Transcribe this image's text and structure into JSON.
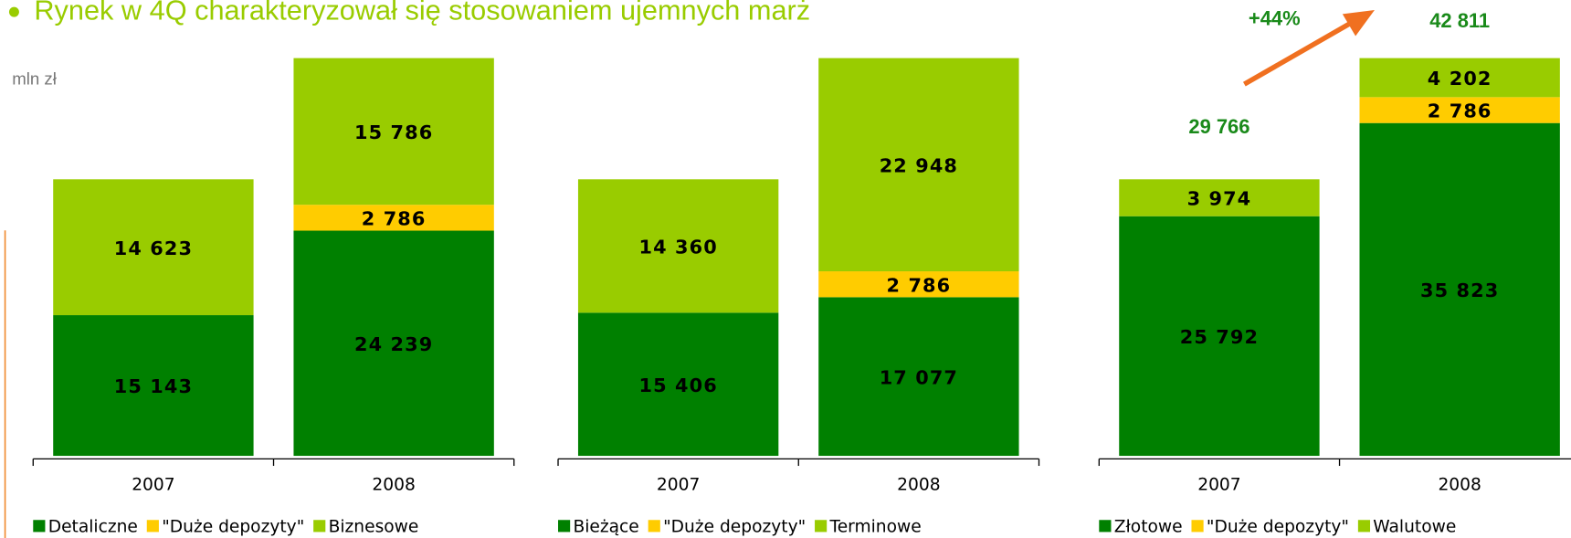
{
  "header": {
    "title": "Rynek w 4Q charakteryzował się stosowaniem ujemnych marż",
    "unit": "mln zł"
  },
  "chart_data": [
    {
      "type": "bar",
      "stacked": true,
      "categories": [
        "2007",
        "2008"
      ],
      "series": [
        {
          "name": "Detaliczne",
          "color": "#008000",
          "values": [
            15143,
            24239
          ],
          "value_labels": [
            "15 143",
            "24 239"
          ]
        },
        {
          "name": "\"Duże depozyty\"",
          "color": "#ffcc00",
          "values": [
            null,
            2786
          ],
          "value_labels": [
            null,
            "2 786"
          ]
        },
        {
          "name": "Biznesowe",
          "color": "#99cc00",
          "values": [
            14623,
            15786
          ],
          "value_labels": [
            "14 623",
            "15 786"
          ]
        }
      ]
    },
    {
      "type": "bar",
      "stacked": true,
      "categories": [
        "2007",
        "2008"
      ],
      "series": [
        {
          "name": "Bieżące",
          "color": "#008000",
          "values": [
            15406,
            17077
          ],
          "value_labels": [
            "15 406",
            "17 077"
          ]
        },
        {
          "name": "\"Duże depozyty\"",
          "color": "#ffcc00",
          "values": [
            null,
            2786
          ],
          "value_labels": [
            null,
            "2 786"
          ]
        },
        {
          "name": "Terminowe",
          "color": "#99cc00",
          "values": [
            14360,
            22948
          ],
          "value_labels": [
            "14 360",
            "22 948"
          ]
        }
      ]
    },
    {
      "type": "bar",
      "stacked": true,
      "categories": [
        "2007",
        "2008"
      ],
      "series": [
        {
          "name": "Złotowe",
          "color": "#008000",
          "values": [
            25792,
            35823
          ],
          "value_labels": [
            "25 792",
            "35 823"
          ]
        },
        {
          "name": "\"Duże depozyty\"",
          "color": "#ffcc00",
          "values": [
            null,
            2786
          ],
          "value_labels": [
            null,
            "2 786"
          ]
        },
        {
          "name": "Walutowe",
          "color": "#99cc00",
          "values": [
            3974,
            4202
          ],
          "value_labels": [
            "3 974",
            "4 202"
          ]
        }
      ],
      "totals": [
        29766,
        42811
      ],
      "total_labels": [
        "29 766",
        "42 811"
      ],
      "annotation": "+44%"
    }
  ]
}
